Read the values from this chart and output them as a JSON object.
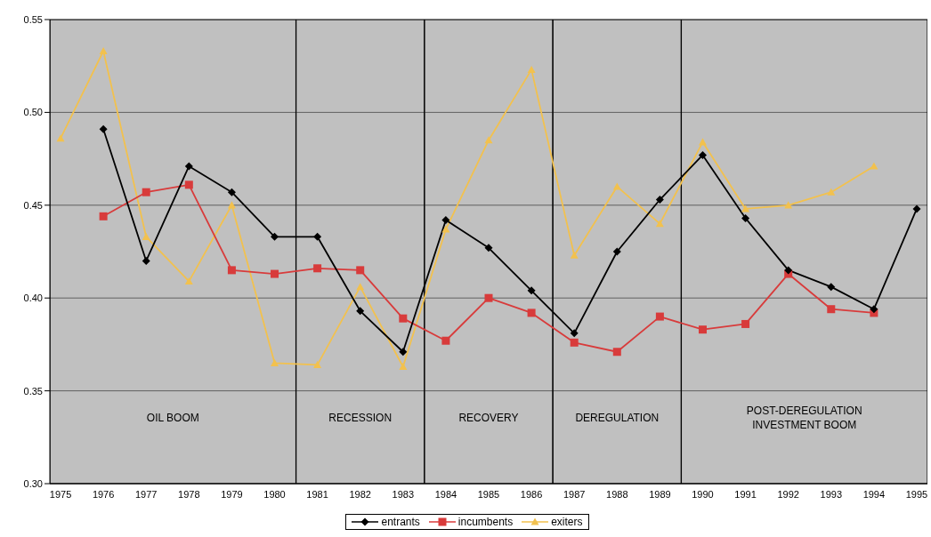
{
  "chart_data": {
    "type": "line",
    "categories": [
      "1975",
      "1976",
      "1977",
      "1978",
      "1979",
      "1980",
      "1981",
      "1982",
      "1983",
      "1984",
      "1985",
      "1986",
      "1987",
      "1988",
      "1989",
      "1990",
      "1991",
      "1992",
      "1993",
      "1994",
      "1995"
    ],
    "series": [
      {
        "name": "entrants",
        "color": "#000000",
        "marker": "diamond",
        "values": [
          null,
          0.491,
          0.42,
          0.471,
          0.457,
          0.433,
          0.433,
          0.393,
          0.371,
          0.442,
          0.427,
          0.404,
          0.381,
          0.425,
          0.453,
          0.477,
          0.443,
          0.415,
          0.406,
          0.394,
          0.448
        ]
      },
      {
        "name": "incumbents",
        "color": "#d83b3b",
        "marker": "square",
        "values": [
          null,
          0.444,
          0.457,
          0.461,
          0.415,
          0.413,
          0.416,
          0.415,
          0.389,
          0.377,
          0.4,
          0.392,
          0.376,
          0.371,
          0.39,
          0.383,
          0.386,
          0.413,
          0.394,
          0.392,
          null
        ]
      },
      {
        "name": "exiters",
        "color": "#f2c14e",
        "marker": "triangle",
        "values": [
          0.486,
          0.533,
          0.433,
          0.409,
          0.45,
          0.365,
          0.364,
          0.406,
          0.363,
          0.437,
          0.485,
          0.523,
          0.423,
          0.46,
          0.44,
          0.484,
          0.448,
          0.45,
          0.457,
          0.471,
          null
        ]
      }
    ],
    "ylim": [
      0.3,
      0.55
    ],
    "yticks": [
      {
        "value": 0.3,
        "label": "0.30"
      },
      {
        "value": 0.35,
        "label": "0.35"
      },
      {
        "value": 0.4,
        "label": "0.40"
      },
      {
        "value": 0.45,
        "label": "0.45"
      },
      {
        "value": 0.5,
        "label": "0.50"
      },
      {
        "value": 0.55,
        "label": "0.55"
      }
    ],
    "bands": [
      {
        "axis": "x",
        "from": "1975",
        "to": "1980",
        "label": "OIL BOOM",
        "color": "#c0c0c0"
      },
      {
        "axis": "x",
        "from": "1981",
        "to": "1983",
        "label": "RECESSION",
        "color": "#c0c0c0"
      },
      {
        "axis": "x",
        "from": "1984",
        "to": "1986",
        "label": "RECOVERY",
        "color": "#c0c0c0"
      },
      {
        "axis": "x",
        "from": "1987",
        "to": "1989",
        "label": "DEREGULATION",
        "color": "#c0c0c0"
      },
      {
        "axis": "x",
        "from": "1990",
        "to": "1995",
        "label": "POST-DEREGULATION\nINVESTMENT BOOM",
        "color": "#c0c0c0"
      }
    ],
    "grid": "y",
    "legend": "bottom"
  }
}
